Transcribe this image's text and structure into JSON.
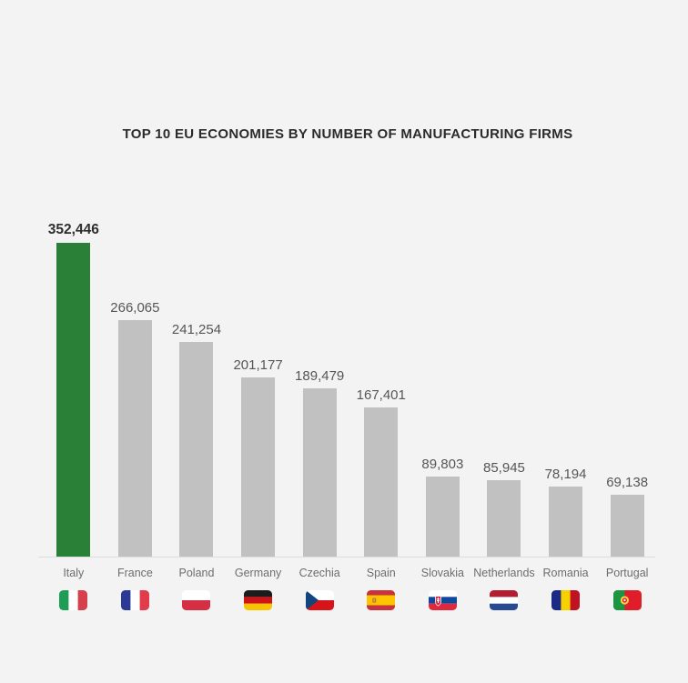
{
  "page": {
    "background": "#f3f3f3"
  },
  "chart_data": {
    "type": "bar",
    "title": "TOP 10 EU ECONOMIES BY NUMBER OF MANUFACTURING FIRMS",
    "categories": [
      "Italy",
      "France",
      "Poland",
      "Germany",
      "Czechia",
      "Spain",
      "Slovakia",
      "Netherlands",
      "Romania",
      "Portugal"
    ],
    "values": [
      352446,
      266065,
      241254,
      201177,
      189479,
      167401,
      89803,
      85945,
      78194,
      69138
    ],
    "value_labels": [
      "352,446",
      "266,065",
      "241,254",
      "201,177",
      "189,479",
      "167,401",
      "89,803",
      "85,945",
      "78,194",
      "69,138"
    ],
    "flag_icons": [
      "italy-flag-icon",
      "france-flag-icon",
      "poland-flag-icon",
      "germany-flag-icon",
      "czechia-flag-icon",
      "spain-flag-icon",
      "slovakia-flag-icon",
      "netherlands-flag-icon",
      "romania-flag-icon",
      "portugal-flag-icon"
    ],
    "highlight_index": 0,
    "xlabel": "",
    "ylabel": "",
    "ylim": [
      0,
      352446
    ],
    "grid": false,
    "legend": false,
    "bar_orientation": "vertical",
    "colors": {
      "highlight_bar": "#2a8036",
      "default_bar": "#c1c1c1",
      "axis_line": "#dcdcdc",
      "value_label": "#565656",
      "highlight_value_label": "#2e2e2e",
      "category_label": "#6d6d6d",
      "title": "#2b2b2b",
      "background": "#f3f3f3"
    }
  }
}
